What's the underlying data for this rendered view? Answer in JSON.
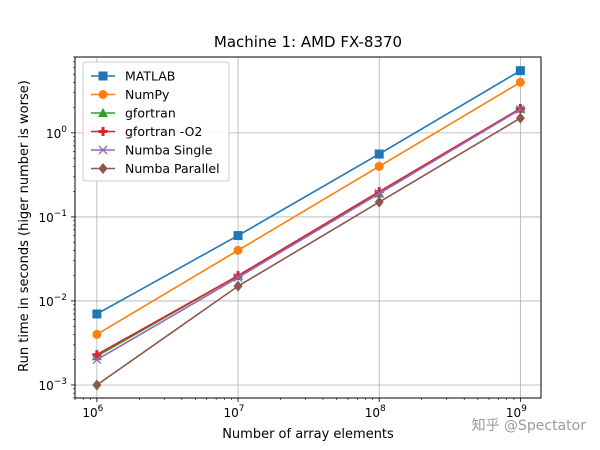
{
  "chart_data": {
    "type": "line",
    "title": "Machine 1: AMD FX-8370",
    "xlabel": "Number of array elements",
    "ylabel": "Run time in seconds (higer number is worse)",
    "x_scale": "log",
    "y_scale": "log",
    "x": [
      1000000,
      10000000,
      100000000,
      1000000000
    ],
    "xlim": [
      700000,
      1400000000
    ],
    "ylim": [
      0.0007,
      8
    ],
    "grid": true,
    "legend_position": "top-left",
    "x_ticks": [
      {
        "base": "10",
        "exp": "6"
      },
      {
        "base": "10",
        "exp": "7"
      },
      {
        "base": "10",
        "exp": "8"
      },
      {
        "base": "10",
        "exp": "9"
      }
    ],
    "y_ticks": [
      {
        "value": 0.001,
        "base": "10",
        "exp": "−3"
      },
      {
        "value": 0.01,
        "base": "10",
        "exp": "−2"
      },
      {
        "value": 0.1,
        "base": "10",
        "exp": "−1"
      },
      {
        "value": 1,
        "base": "10",
        "exp": "0"
      }
    ],
    "series": [
      {
        "name": "MATLAB",
        "color": "#1f77b4",
        "marker": "square",
        "values": [
          0.007,
          0.06,
          0.56,
          5.5
        ]
      },
      {
        "name": "NumPy",
        "color": "#ff7f0e",
        "marker": "circle",
        "values": [
          0.004,
          0.04,
          0.4,
          4.0
        ]
      },
      {
        "name": "gfortran",
        "color": "#2ca02c",
        "marker": "triangle",
        "values": [
          0.0022,
          0.02,
          0.19,
          1.95
        ]
      },
      {
        "name": "gfortran -O2",
        "color": "#d62728",
        "marker": "plus",
        "values": [
          0.0023,
          0.02,
          0.2,
          1.95
        ]
      },
      {
        "name": "Numba Single",
        "color": "#9467bd",
        "marker": "x",
        "values": [
          0.002,
          0.019,
          0.19,
          1.9
        ]
      },
      {
        "name": "Numba Parallel",
        "color": "#8c564b",
        "marker": "diamond",
        "values": [
          0.001,
          0.015,
          0.15,
          1.5
        ]
      }
    ]
  },
  "watermark": "知乎 @Spectator"
}
